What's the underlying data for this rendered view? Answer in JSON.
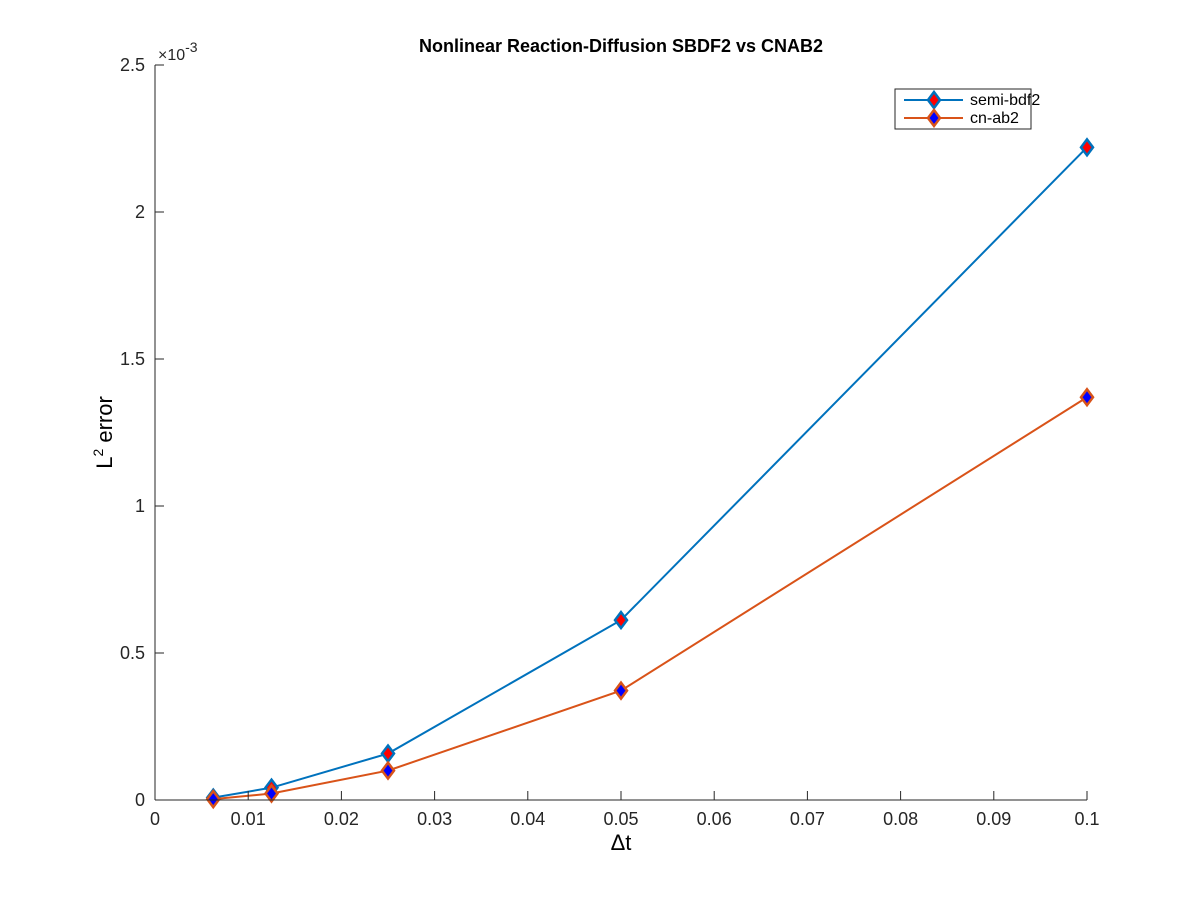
{
  "chart_data": {
    "type": "line",
    "title": "Nonlinear Reaction-Diffusion SBDF2 vs CNAB2",
    "xlabel": "Δt",
    "ylabel": {
      "base": "L",
      "superscript": "2",
      "rest": " error"
    },
    "x_scale_exponent": {
      "base": "×10",
      "exponent": "-3"
    },
    "xlim": [
      0,
      0.1
    ],
    "ylim": [
      0,
      0.0025
    ],
    "xticks": [
      0,
      0.01,
      0.02,
      0.03,
      0.04,
      0.05,
      0.06,
      0.07,
      0.08,
      0.09,
      0.1
    ],
    "xtick_labels": [
      "0",
      "0.01",
      "0.02",
      "0.03",
      "0.04",
      "0.05",
      "0.06",
      "0.07",
      "0.08",
      "0.09",
      "0.1"
    ],
    "yticks": [
      0,
      0.0005,
      0.001,
      0.0015,
      0.002,
      0.0025
    ],
    "ytick_labels": [
      "0",
      "0.5",
      "1",
      "1.5",
      "2",
      "2.5"
    ],
    "grid": false,
    "legend_position": "top-right",
    "x": [
      0.00625,
      0.0125,
      0.025,
      0.05,
      0.1
    ],
    "series": [
      {
        "name": "semi-bdf2",
        "values": [
          8e-06,
          4.2e-05,
          0.000158,
          0.000612,
          0.00222
        ],
        "line_color": "#0072BD",
        "marker": "diamond",
        "marker_face": "#FF0000",
        "marker_edge": "#0072BD"
      },
      {
        "name": "cn-ab2",
        "values": [
          3e-06,
          2.2e-05,
          0.0001,
          0.000372,
          0.00137
        ],
        "line_color": "#D95319",
        "marker": "diamond",
        "marker_face": "#0000FF",
        "marker_edge": "#D95319"
      }
    ]
  }
}
